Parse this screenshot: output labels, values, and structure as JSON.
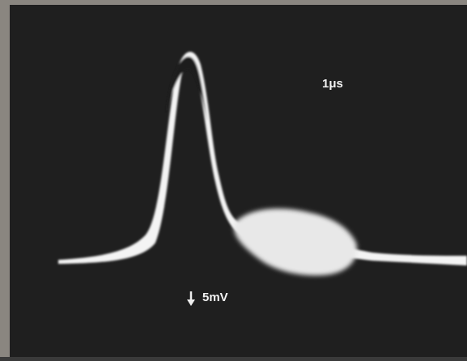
{
  "labels": {
    "time_scale": "1μs",
    "voltage_scale": "5mV"
  }
}
